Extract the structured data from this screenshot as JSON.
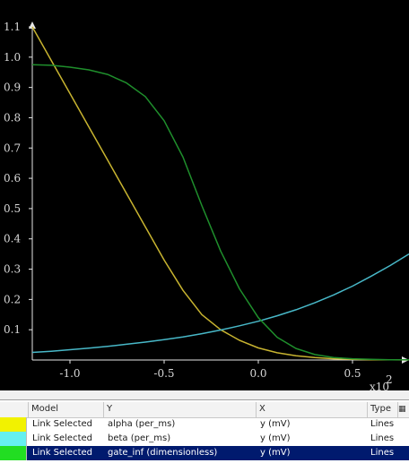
{
  "colors": {
    "background": "#000000",
    "axis": "#e6e6e6",
    "alpha": "#c8b430",
    "beta": "#48b8c8",
    "gate_inf": "#1f8f2c",
    "selected_row": "#001a6e"
  },
  "chart_data": {
    "type": "line",
    "xlim": [
      -1.2,
      0.8
    ],
    "ylim": [
      0,
      1.1
    ],
    "x_ticks": [
      "-1.0",
      "-0.5",
      "0.0",
      "0.5"
    ],
    "x_tick_values": [
      -1.0,
      -0.5,
      0.0,
      0.5
    ],
    "y_ticks": [
      "0.1",
      "0.2",
      "0.3",
      "0.4",
      "0.5",
      "0.6",
      "0.7",
      "0.8",
      "0.9",
      "1.0",
      "1.1"
    ],
    "y_tick_values": [
      0.1,
      0.2,
      0.3,
      0.4,
      0.5,
      0.6,
      0.7,
      0.8,
      0.9,
      1.0,
      1.1
    ],
    "x_multiplier": "x10",
    "x_multiplier_exp": "2",
    "grid": false,
    "series": [
      {
        "key": "alpha",
        "x": [
          -1.2,
          -1.1,
          -1.0,
          -0.9,
          -0.8,
          -0.7,
          -0.6,
          -0.5,
          -0.4,
          -0.3,
          -0.2,
          -0.1,
          0.0,
          0.1,
          0.2,
          0.3,
          0.4,
          0.5,
          0.6,
          0.7,
          0.8
        ],
        "values": [
          1.1,
          0.99,
          0.88,
          0.77,
          0.66,
          0.55,
          0.44,
          0.33,
          0.23,
          0.15,
          0.1,
          0.065,
          0.04,
          0.024,
          0.014,
          0.008,
          0.004,
          0.002,
          0.001,
          0.0005,
          0.0002
        ]
      },
      {
        "key": "beta",
        "x": [
          -1.2,
          -1.1,
          -1.0,
          -0.9,
          -0.8,
          -0.7,
          -0.6,
          -0.5,
          -0.4,
          -0.3,
          -0.2,
          -0.1,
          0.0,
          0.1,
          0.2,
          0.3,
          0.4,
          0.5,
          0.6,
          0.7,
          0.8
        ],
        "values": [
          0.025,
          0.029,
          0.034,
          0.039,
          0.045,
          0.052,
          0.059,
          0.067,
          0.076,
          0.087,
          0.099,
          0.113,
          0.128,
          0.146,
          0.166,
          0.189,
          0.215,
          0.244,
          0.277,
          0.312,
          0.35
        ]
      },
      {
        "key": "gate_inf",
        "x": [
          -1.2,
          -1.1,
          -1.0,
          -0.9,
          -0.8,
          -0.7,
          -0.6,
          -0.5,
          -0.4,
          -0.3,
          -0.2,
          -0.1,
          0.0,
          0.1,
          0.2,
          0.3,
          0.4,
          0.5,
          0.6,
          0.7,
          0.8
        ],
        "values": [
          0.975,
          0.973,
          0.967,
          0.958,
          0.943,
          0.915,
          0.87,
          0.79,
          0.67,
          0.51,
          0.36,
          0.235,
          0.14,
          0.075,
          0.038,
          0.018,
          0.008,
          0.004,
          0.002,
          0.001,
          0.0005
        ]
      }
    ]
  },
  "table": {
    "headers": {
      "model": "Model",
      "y": "Y",
      "x": "X",
      "type": "Type"
    },
    "rows": [
      {
        "model": "Link Selected",
        "y": "alpha (per_ms)",
        "x": "y (mV)",
        "type": "Lines",
        "color": "#f2f200"
      },
      {
        "model": "Link Selected",
        "y": "beta (per_ms)",
        "x": "y (mV)",
        "type": "Lines",
        "color": "#66f0f0"
      },
      {
        "model": "Link Selected",
        "y": "gate_inf (dimensionless)",
        "x": "y (mV)",
        "type": "Lines",
        "color": "#22dd22"
      }
    ],
    "header_icon": "table-options-icon"
  }
}
